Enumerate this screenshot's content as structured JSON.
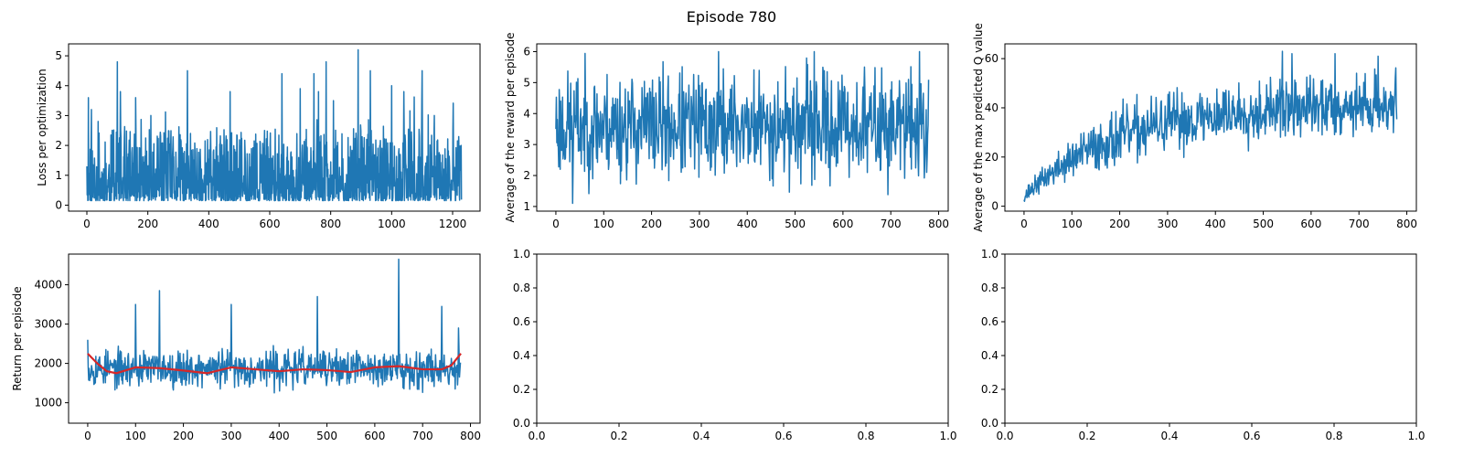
{
  "figure": {
    "suptitle": "Episode 780",
    "line_color": "#1f77b4",
    "smooth_color": "#d62728"
  },
  "chart_data": [
    {
      "type": "line",
      "panel": "loss",
      "ylabel": "Loss per optimization",
      "xlim": [
        -60,
        1290
      ],
      "ylim": [
        -0.2,
        5.4
      ],
      "xticks": [
        0,
        200,
        400,
        600,
        800,
        1000,
        1200
      ],
      "yticks": [
        0,
        1,
        2,
        3,
        4,
        5
      ],
      "n_points": 1230,
      "series": [
        {
          "noise": "loss",
          "seed": 11,
          "spikes": [
            [
              0,
              1.3
            ],
            [
              5,
              3.6
            ],
            [
              15,
              3.2
            ],
            [
              100,
              4.8
            ],
            [
              110,
              3.8
            ],
            [
              160,
              3.6
            ],
            [
              210,
              3.0
            ],
            [
              330,
              4.5
            ],
            [
              470,
              3.8
            ],
            [
              640,
              4.4
            ],
            [
              700,
              3.9
            ],
            [
              745,
              4.4
            ],
            [
              760,
              3.8
            ],
            [
              785,
              4.8
            ],
            [
              890,
              5.2
            ],
            [
              930,
              4.5
            ],
            [
              1000,
              4.0
            ],
            [
              1040,
              3.8
            ],
            [
              1100,
              4.5
            ],
            [
              1140,
              3.0
            ],
            [
              1225,
              1.3
            ]
          ]
        }
      ]
    },
    {
      "type": "line",
      "panel": "avg-reward",
      "ylabel": "Average of the reward per episode",
      "xlim": [
        -40,
        820
      ],
      "ylim": [
        0.85,
        6.25
      ],
      "xticks": [
        0,
        100,
        200,
        300,
        400,
        500,
        600,
        700,
        800
      ],
      "yticks": [
        1,
        2,
        3,
        4,
        5,
        6
      ],
      "n_points": 780,
      "series": [
        {
          "noise": "level",
          "seed": 23,
          "base": 3.6,
          "amp": 1.4,
          "min": 1.1,
          "max": 6.0,
          "spikes": [
            [
              0,
              3.5
            ],
            [
              35,
              1.1
            ],
            [
              340,
              6.0
            ],
            [
              540,
              6.0
            ],
            [
              760,
              6.0
            ],
            [
              775,
              2.1
            ]
          ]
        }
      ]
    },
    {
      "type": "line",
      "panel": "max-q",
      "ylabel": "Average of the max predicted Q value",
      "xlim": [
        -40,
        820
      ],
      "ylim": [
        -2,
        66
      ],
      "xticks": [
        0,
        100,
        200,
        300,
        400,
        500,
        600,
        700,
        800
      ],
      "yticks": [
        0,
        20,
        40,
        60
      ],
      "n_points": 780,
      "series": [
        {
          "noise": "growth",
          "seed": 37,
          "start": 4,
          "plateau": 42,
          "tau": 200,
          "amp": 9,
          "min": 2,
          "max": 63,
          "spikes": [
            [
              540,
              63
            ],
            [
              560,
              62
            ],
            [
              650,
              62
            ],
            [
              740,
              61
            ]
          ]
        }
      ]
    },
    {
      "type": "line",
      "panel": "return",
      "ylabel": "Return per episode",
      "xlim": [
        -40,
        820
      ],
      "ylim": [
        480,
        4780
      ],
      "xticks": [
        0,
        100,
        200,
        300,
        400,
        500,
        600,
        700,
        800
      ],
      "yticks": [
        1000,
        2000,
        3000,
        4000
      ],
      "n_points": 780,
      "series": [
        {
          "noise": "level",
          "seed": 53,
          "base": 1870,
          "amp": 380,
          "min": 650,
          "max": 4650,
          "spikes": [
            [
              0,
              2600
            ],
            [
              100,
              3500
            ],
            [
              150,
              3850
            ],
            [
              300,
              3500
            ],
            [
              480,
              3700
            ],
            [
              650,
              4650
            ],
            [
              740,
              3450
            ],
            [
              775,
              2900
            ]
          ]
        },
        {
          "smooth": true,
          "x": [
            0,
            20,
            40,
            60,
            100,
            150,
            200,
            250,
            300,
            350,
            400,
            450,
            500,
            550,
            600,
            650,
            700,
            740,
            760,
            780
          ],
          "y": [
            2250,
            2000,
            1800,
            1750,
            1900,
            1880,
            1820,
            1750,
            1900,
            1850,
            1800,
            1850,
            1830,
            1780,
            1900,
            1930,
            1850,
            1850,
            1950,
            2250
          ]
        }
      ]
    },
    {
      "type": "line",
      "panel": "empty-1",
      "xlim": [
        0,
        1
      ],
      "ylim": [
        0,
        1
      ],
      "xticks": [
        0.0,
        0.2,
        0.4,
        0.6,
        0.8,
        1.0
      ],
      "yticks": [
        0.0,
        0.2,
        0.4,
        0.6,
        0.8,
        1.0
      ],
      "series": []
    },
    {
      "type": "line",
      "panel": "empty-2",
      "xlim": [
        0,
        1
      ],
      "ylim": [
        0,
        1
      ],
      "xticks": [
        0.0,
        0.2,
        0.4,
        0.6,
        0.8,
        1.0
      ],
      "yticks": [
        0.0,
        0.2,
        0.4,
        0.6,
        0.8,
        1.0
      ],
      "series": []
    }
  ]
}
